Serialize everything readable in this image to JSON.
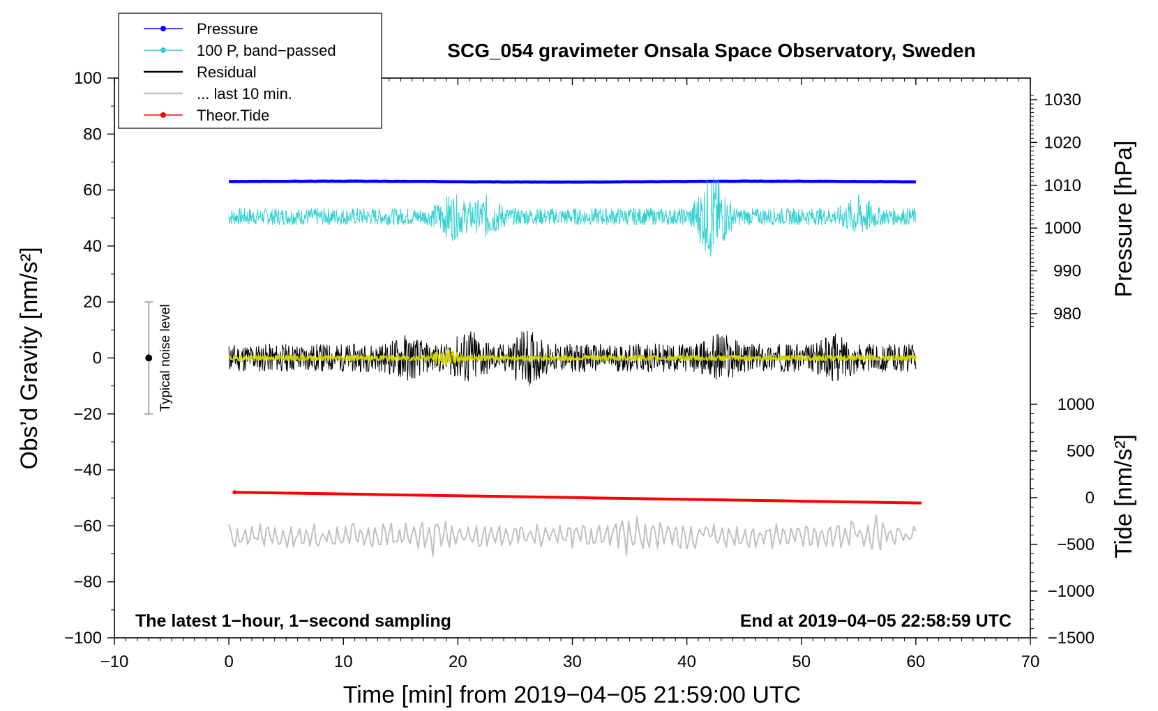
{
  "chart_data": {
    "type": "line",
    "title": "SCG_054 gravimeter Onsala Space Observatory, Sweden",
    "xlabel": "Time [min] from 2019−04−05 21:59:00 UTC",
    "ylabel": "Obs’d Gravity [nm/s²]",
    "ylabel_pressure": "Pressure [hPa]",
    "ylabel_tide": "Tide [nm/s²]",
    "xlim": [
      -10,
      70
    ],
    "ylim": [
      -100,
      100
    ],
    "pressure_lim": [
      1031.4,
      976.1
    ],
    "tide_lim": [
      -1500,
      1500
    ],
    "x_ticks": [
      -10,
      0,
      10,
      20,
      30,
      40,
      50,
      60,
      70
    ],
    "x_tick_labels": [
      "−10",
      "0",
      "10",
      "20",
      "30",
      "40",
      "50",
      "60",
      "70"
    ],
    "y_ticks": [
      -100,
      -80,
      -60,
      -40,
      -20,
      0,
      20,
      40,
      60,
      80,
      100
    ],
    "y_tick_labels": [
      "−100",
      "−80",
      "−60",
      "−40",
      "−20",
      "0",
      "20",
      "40",
      "60",
      "80",
      "100"
    ],
    "pressure_ticks": [
      980,
      990,
      1000,
      1010,
      1020,
      1030
    ],
    "pressure_tick_labels": [
      "980",
      "990",
      "1000",
      "1010",
      "1020",
      "1030"
    ],
    "tide_ticks": [
      -1500,
      -1000,
      -500,
      0,
      500,
      1000
    ],
    "tide_tick_labels": [
      "−1500",
      "−1000",
      "−500",
      "0",
      "500",
      "1000"
    ],
    "note_left": "The latest 1−hour, 1−second sampling",
    "note_right": "End at 2019−04−05 22:58:59 UTC",
    "legend": [
      {
        "label": "Pressure",
        "color": "#0000ff",
        "marker": true
      },
      {
        "label": "100 P, band−passed",
        "color": "#30d0d0",
        "marker": true
      },
      {
        "label": "Residual",
        "color": "#000000",
        "marker": false
      },
      {
        "label": "... last 10 min.",
        "color": "#c0c0c0",
        "marker": false
      },
      {
        "label": "Theor.Tide",
        "color": "#ff0000",
        "marker": true
      }
    ],
    "noise_bar": {
      "label": "Typical noise level",
      "x": -7,
      "center": 0,
      "low": -20,
      "high": 20,
      "color": "#aaaaaa"
    },
    "series": [
      {
        "name": "Pressure",
        "color": "#0000ff",
        "x_range": [
          0,
          60
        ],
        "baseline": 63.0,
        "amplitude": 0.3,
        "seed": 3,
        "style": "thick"
      },
      {
        "name": "100 P, band−passed",
        "color": "#30d0d0",
        "x_range": [
          0,
          60
        ],
        "baseline": 50.5,
        "amplitude": 3.0,
        "seed": 7,
        "bursts": [
          {
            "x": 19.5,
            "amp": 6
          },
          {
            "x": 22.5,
            "amp": 5
          },
          {
            "x": 42.2,
            "amp": 14
          },
          {
            "x": 55,
            "amp": 5
          }
        ]
      },
      {
        "name": "Residual",
        "color": "#000000",
        "x_range": [
          0,
          60
        ],
        "baseline": 0.0,
        "amplitude": 5.0,
        "seed": 11,
        "bursts": [
          {
            "x": 15.5,
            "amp": 4
          },
          {
            "x": 21,
            "amp": 6
          },
          {
            "x": 26,
            "amp": 6
          },
          {
            "x": 43,
            "amp": 5
          },
          {
            "x": 53,
            "amp": 4
          }
        ]
      },
      {
        "name": "Residual (smoothed)",
        "color": "#d4d400",
        "x_range": [
          0,
          60
        ],
        "baseline": 0.0,
        "amplitude": 1.0,
        "seed": 19,
        "bursts": [
          {
            "x": 19,
            "amp": 2
          }
        ]
      },
      {
        "name": "... last 10 min.",
        "color": "#c0c0c0",
        "x_range": [
          0,
          60
        ],
        "baseline": -63.5,
        "amplitude": 4.0,
        "seed": 23,
        "style": "smooth",
        "bursts": [
          {
            "x": 18,
            "amp": 3
          },
          {
            "x": 35,
            "amp": 3
          },
          {
            "x": 56,
            "amp": 3
          }
        ]
      },
      {
        "name": "Theor.Tide",
        "color": "#ff0000",
        "x_range": [
          0.5,
          60.5
        ],
        "tide_start": 58,
        "tide_end": -57
      }
    ]
  }
}
